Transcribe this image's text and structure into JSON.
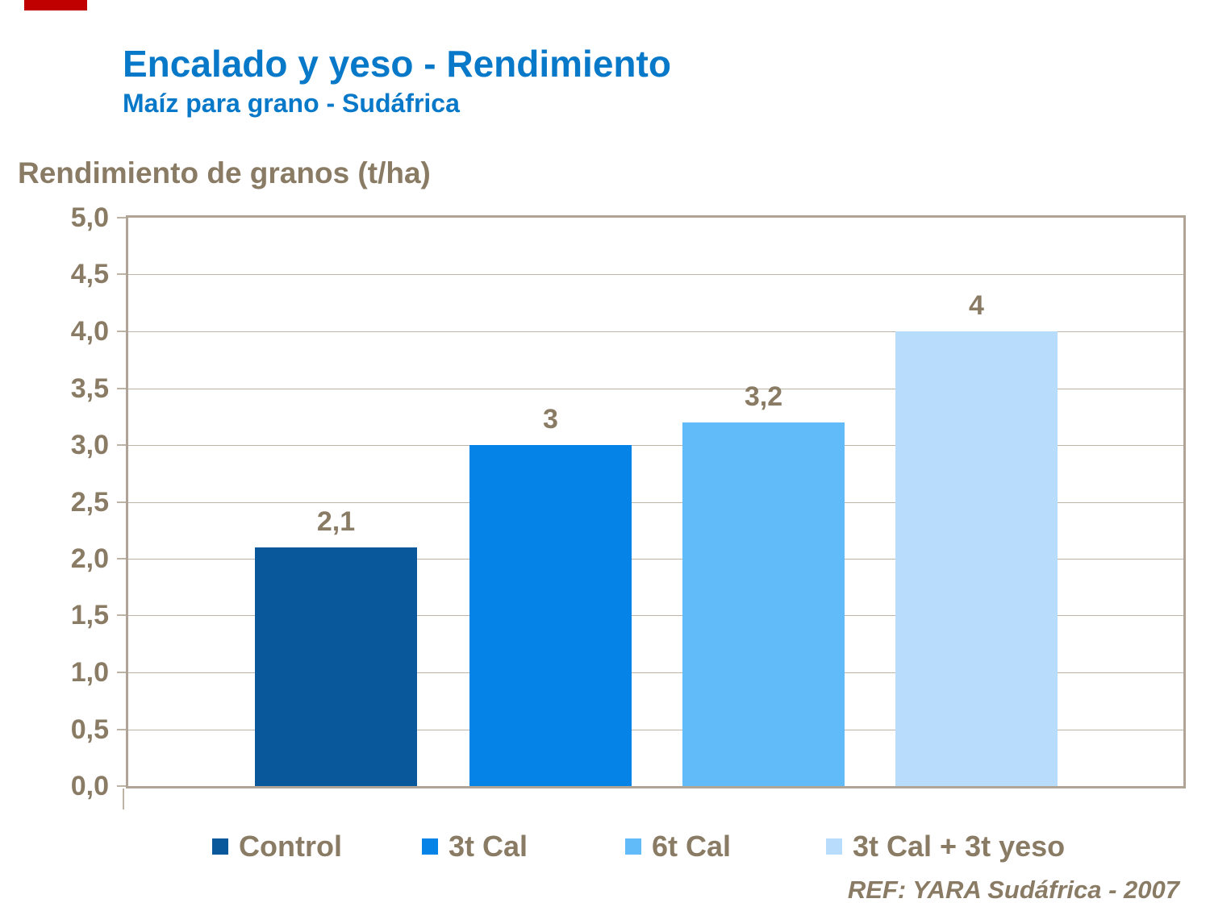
{
  "slide": {
    "title": "Encalado y yeso - Rendimiento",
    "subtitle": "Maíz para grano - Sudáfrica",
    "axis_title": "Rendimiento de granos (t/ha)",
    "ref": "REF: YARA Sudáfrica - 2007"
  },
  "colors": {
    "title_blue": "#0878C8",
    "text_brown": "#8A7B65",
    "grid": "#BDB4A6",
    "plot_border": "#AFA496",
    "accent_red": "#C00000",
    "background": "#FFFFFF"
  },
  "chart_data": {
    "type": "bar",
    "title": "Rendimiento de granos (t/ha)",
    "ylabel": "Rendimiento de granos (t/ha)",
    "categories": [
      "Control",
      "3t Cal",
      "6t Cal",
      "3t Cal + 3t yeso"
    ],
    "values": [
      2.1,
      3,
      3.2,
      4
    ],
    "value_labels": [
      "2,1",
      "3",
      "3,2",
      "4"
    ],
    "bar_colors": [
      "#0A589C",
      "#0583E6",
      "#61BBF8",
      "#B8DCFB"
    ],
    "ylim": [
      0,
      5
    ],
    "ytick_step": 0.5,
    "ytick_labels": [
      "0,0",
      "0,5",
      "1,0",
      "1,5",
      "2,0",
      "2,5",
      "3,0",
      "3,5",
      "4,0",
      "4,5",
      "5,0"
    ],
    "grid": true,
    "legend_position": "bottom",
    "source": "REF: YARA Sudáfrica - 2007"
  }
}
